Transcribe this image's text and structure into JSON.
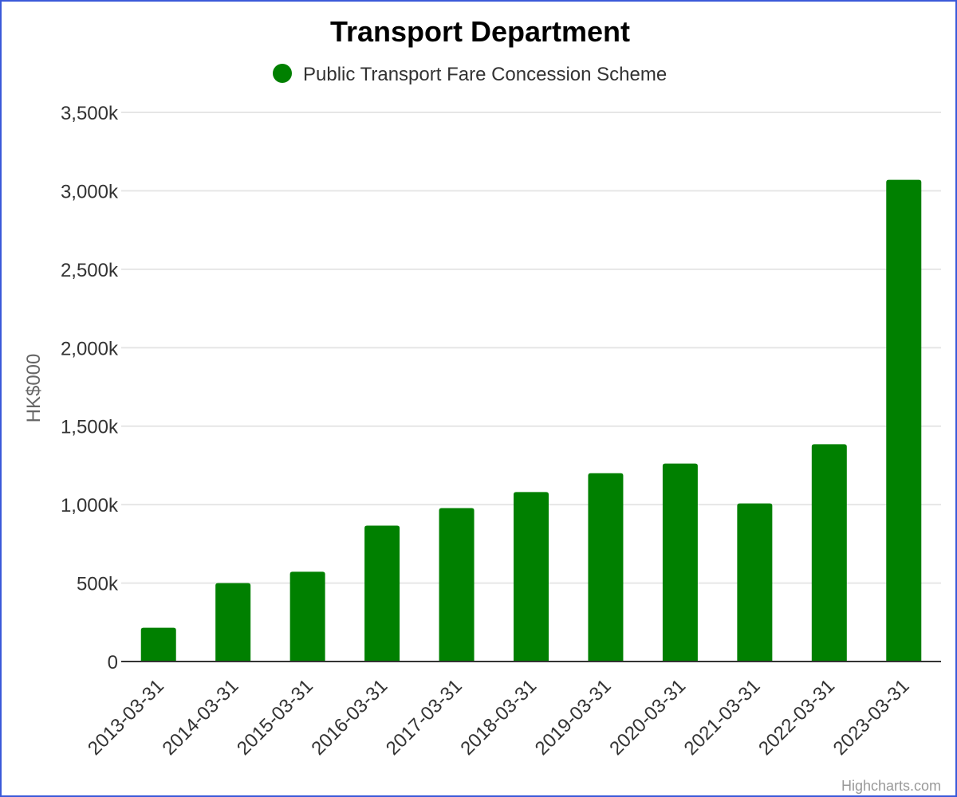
{
  "chart_data": {
    "type": "bar",
    "title": "Transport Department",
    "ylabel": "HK$000",
    "xlabel": "",
    "ylim": [
      0,
      3500000
    ],
    "yticks": [
      0,
      500000,
      1000000,
      1500000,
      2000000,
      2500000,
      3000000,
      3500000
    ],
    "ytick_labels": [
      "0",
      "500k",
      "1,000k",
      "1,500k",
      "2,000k",
      "2,500k",
      "3,000k",
      "3,500k"
    ],
    "categories": [
      "2013-03-31",
      "2014-03-31",
      "2015-03-31",
      "2016-03-31",
      "2017-03-31",
      "2018-03-31",
      "2019-03-31",
      "2020-03-31",
      "2021-03-31",
      "2022-03-31",
      "2023-03-31"
    ],
    "series": [
      {
        "name": "Public Transport Fare Concession Scheme",
        "color": "#008000",
        "values": [
          215000,
          500000,
          572000,
          866000,
          978000,
          1080000,
          1200000,
          1262000,
          1008000,
          1385000,
          3070000
        ]
      }
    ],
    "legend_position": "top-center",
    "grid": true,
    "credits": "Highcharts.com"
  }
}
